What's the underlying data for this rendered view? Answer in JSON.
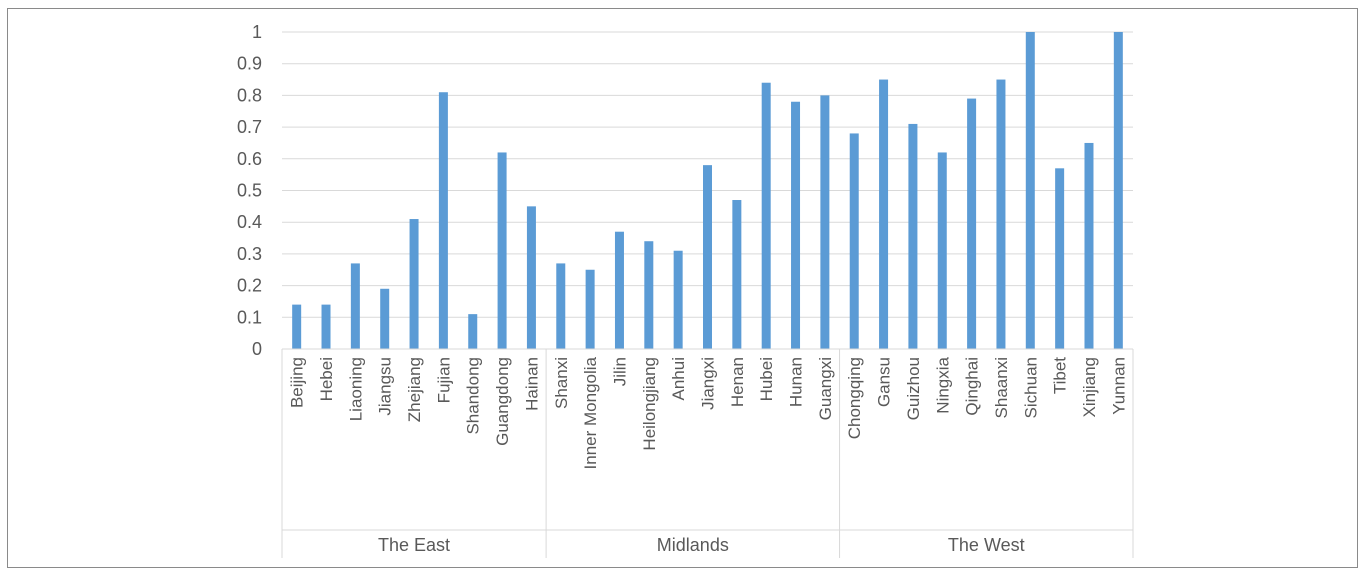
{
  "chart_data": {
    "type": "bar",
    "title": "",
    "xlabel": "",
    "ylabel": "",
    "ylim": [
      0,
      1
    ],
    "yticks": [
      "0",
      "0.1",
      "0.2",
      "0.3",
      "0.4",
      "0.5",
      "0.6",
      "0.7",
      "0.8",
      "0.9",
      "1"
    ],
    "grid": true,
    "bar_color": "#5b9bd5",
    "categories": [
      "Beijing",
      "Hebei",
      "Liaoning",
      "Jiangsu",
      "Zhejiang",
      "Fujian",
      "Shandong",
      "Guangdong",
      "Hainan",
      "Shanxi",
      "Inner Mongolia",
      "Jilin",
      "Heilongjiang",
      "Anhui",
      "Jiangxi",
      "Henan",
      "Hubei",
      "Hunan",
      "Guangxi",
      "Chongqing",
      "Gansu",
      "Guizhou",
      "Ningxia",
      "Qinghai",
      "Shaanxi",
      "Sichuan",
      "Tibet",
      "Xinjiang",
      "Yunnan"
    ],
    "values": [
      0.14,
      0.14,
      0.27,
      0.19,
      0.41,
      0.81,
      0.11,
      0.62,
      0.45,
      0.27,
      0.25,
      0.37,
      0.34,
      0.31,
      0.58,
      0.47,
      0.84,
      0.78,
      0.8,
      0.68,
      0.85,
      0.71,
      0.62,
      0.79,
      0.85,
      1.0,
      0.57,
      0.65,
      1.0
    ],
    "groups": [
      {
        "name": "The East",
        "count": 9
      },
      {
        "name": "Midlands",
        "count": 10
      },
      {
        "name": "The West",
        "count": 10
      }
    ]
  }
}
